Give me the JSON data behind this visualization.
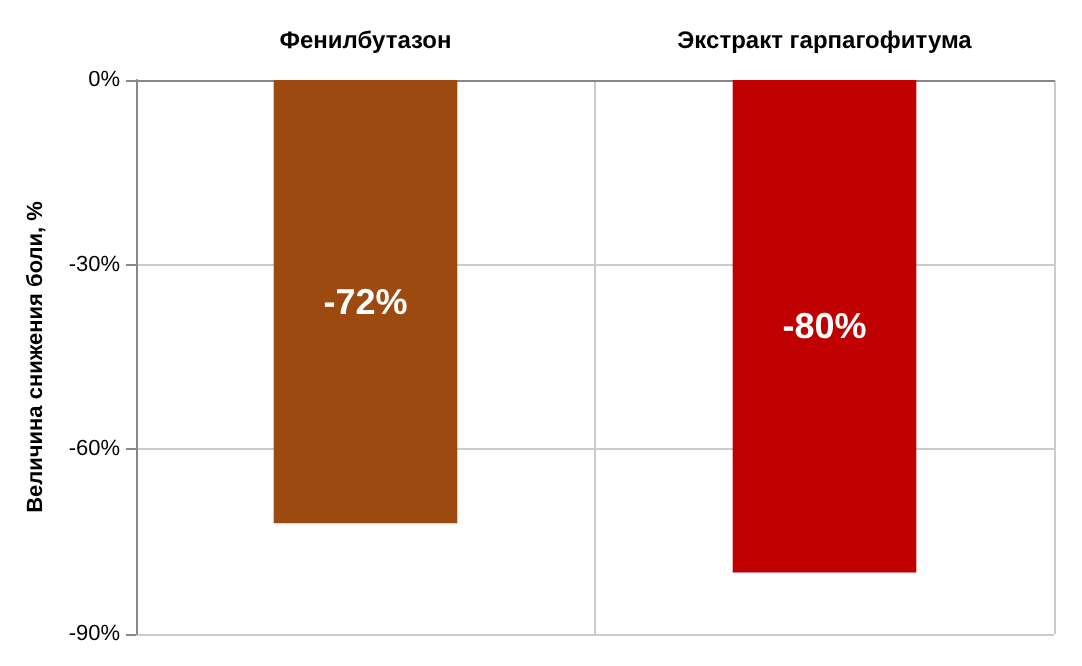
{
  "chart_data": {
    "type": "bar",
    "ylabel": "Величина снижения боли, %",
    "categories": [
      "Фенилбутазон",
      "Экстракт гарпагофитума"
    ],
    "values": [
      -72,
      -80
    ],
    "colors": [
      "#9c4a0f",
      "#c00000"
    ],
    "value_labels": [
      "-72%",
      "-80%"
    ],
    "ylim": [
      -90,
      0
    ],
    "yticks": [
      {
        "value": 0,
        "label": "0%"
      },
      {
        "value": -30,
        "label": "-30%"
      },
      {
        "value": -60,
        "label": "-60%"
      },
      {
        "value": -90,
        "label": "-90%"
      }
    ],
    "grid": true
  }
}
